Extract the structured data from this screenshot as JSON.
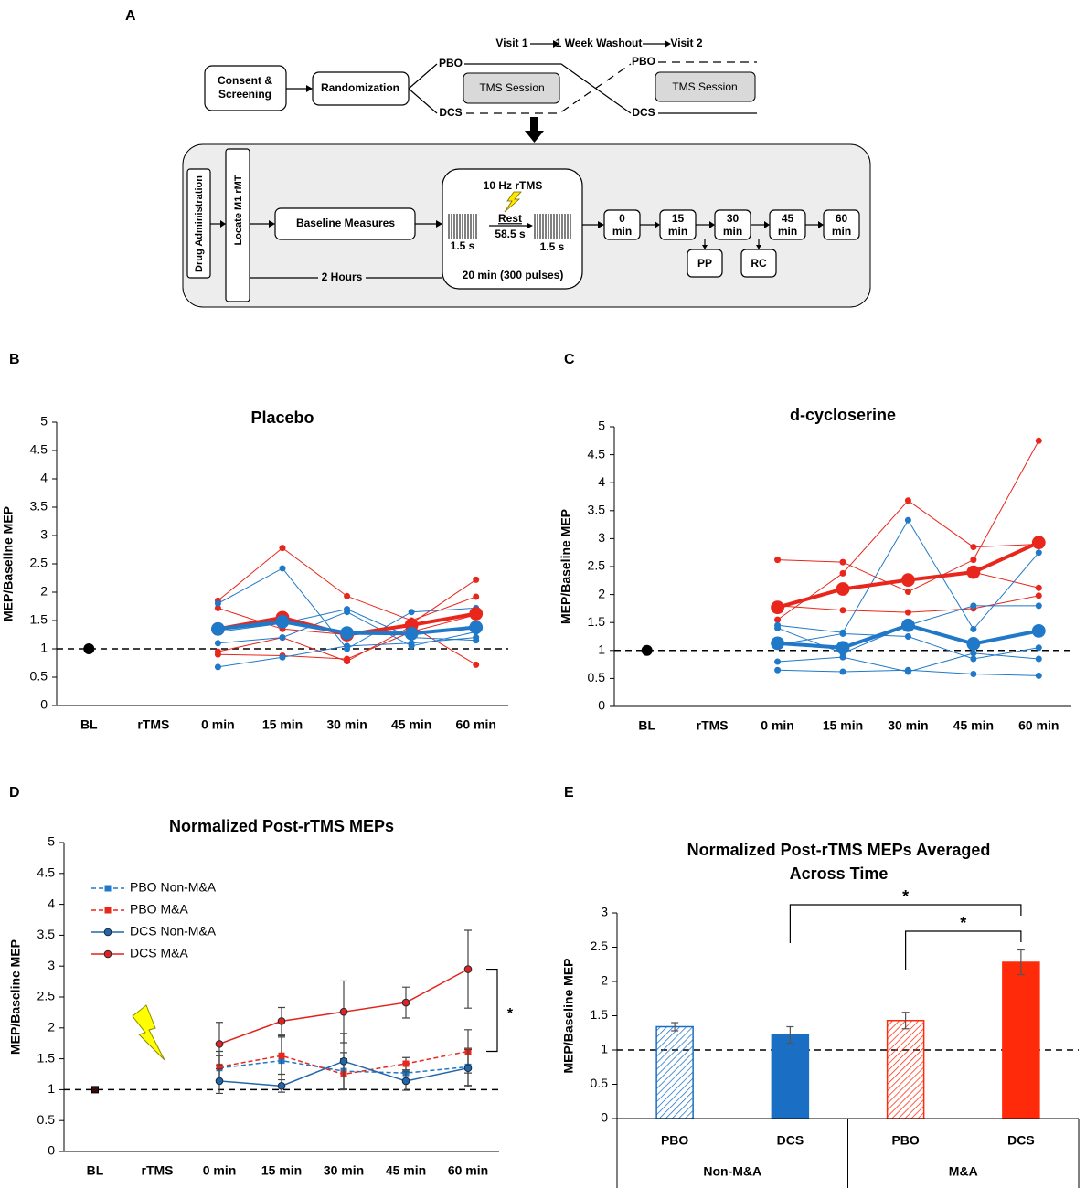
{
  "diagram": {
    "panel": "A",
    "visits": [
      "Visit 1",
      "1 Week Washout",
      "Visit 2"
    ],
    "consent": [
      "Consent &",
      "Screening"
    ],
    "randomization": "Randomization",
    "arms1": [
      "PBO",
      "DCS"
    ],
    "session1": "TMS Session",
    "arms2": [
      "PBO",
      "DCS"
    ],
    "session2": "TMS Session",
    "drug": "Drug Administration",
    "locate": "Locate M1 rMT",
    "baseline": "Baseline Measures",
    "interval": "2 Hours",
    "rtms": {
      "title": "10 Hz rTMS",
      "train": "1.5 s",
      "rest": "Rest",
      "rest_time": "58.5 s",
      "train2": "1.5 s",
      "total": "20 min (300 pulses)"
    },
    "timepoints": [
      [
        "0",
        "min"
      ],
      [
        "15",
        "min"
      ],
      [
        "30",
        "min"
      ],
      [
        "45",
        "min"
      ],
      [
        "60",
        "min"
      ]
    ],
    "probes": [
      "PP",
      "RC"
    ]
  },
  "chart_data": [
    {
      "type": "line",
      "panel": "B",
      "title": "Placebo",
      "y_label": "MEP/Baseline MEP",
      "categories": [
        "BL",
        "rTMS",
        "0 min",
        "15 min",
        "30 min",
        "45 min",
        "60 min"
      ],
      "ylim": [
        0,
        5
      ],
      "yticks": [
        0,
        0.5,
        1,
        1.5,
        2,
        2.5,
        3,
        3.5,
        4,
        4.5,
        5
      ],
      "refline": 1,
      "baseline": 1,
      "baseline_marker": "circle",
      "series": [
        {
          "color": "#e8261c",
          "linewidth": 1,
          "values": [
            null,
            null,
            1.85,
            2.78,
            1.93,
            1.5,
            1.92
          ]
        },
        {
          "color": "#e8261c",
          "linewidth": 1,
          "values": [
            null,
            null,
            1.72,
            1.35,
            1.25,
            1.45,
            2.22
          ]
        },
        {
          "color": "#e8261c",
          "linewidth": 1,
          "values": [
            null,
            null,
            0.95,
            1.2,
            0.78,
            1.4,
            0.72
          ]
        },
        {
          "color": "#e8261c",
          "linewidth": 1,
          "values": [
            null,
            null,
            0.9,
            0.88,
            0.82,
            1.3,
            1.6
          ]
        },
        {
          "color": "#1f78c8",
          "linewidth": 1,
          "values": [
            null,
            null,
            1.8,
            2.42,
            1.0,
            1.65,
            1.72
          ]
        },
        {
          "color": "#1f78c8",
          "linewidth": 1,
          "values": [
            null,
            null,
            1.3,
            1.45,
            1.7,
            1.2,
            1.15
          ]
        },
        {
          "color": "#1f78c8",
          "linewidth": 1,
          "values": [
            null,
            null,
            1.1,
            1.2,
            1.65,
            1.05,
            1.3
          ]
        },
        {
          "color": "#1f78c8",
          "linewidth": 1,
          "values": [
            null,
            null,
            0.68,
            0.85,
            1.05,
            1.1,
            1.2
          ]
        },
        {
          "color": "#e8261c",
          "linewidth": 4,
          "values": [
            null,
            null,
            1.35,
            1.55,
            1.25,
            1.42,
            1.62
          ]
        },
        {
          "color": "#1f78c8",
          "linewidth": 4,
          "values": [
            null,
            null,
            1.35,
            1.48,
            1.28,
            1.27,
            1.38
          ]
        }
      ]
    },
    {
      "type": "line",
      "panel": "C",
      "title": "d-cycloserine",
      "y_label": "MEP/Baseline MEP",
      "categories": [
        "BL",
        "rTMS",
        "0 min",
        "15 min",
        "30 min",
        "45 min",
        "60 min"
      ],
      "ylim": [
        0,
        5
      ],
      "yticks": [
        0,
        0.5,
        1,
        1.5,
        2,
        2.5,
        3,
        3.5,
        4,
        4.5,
        5
      ],
      "refline": 1,
      "baseline": 1,
      "baseline_marker": "circle",
      "series": [
        {
          "color": "#e8261c",
          "linewidth": 1,
          "values": [
            null,
            null,
            2.62,
            2.58,
            2.05,
            2.62,
            4.75
          ]
        },
        {
          "color": "#e8261c",
          "linewidth": 1,
          "values": [
            null,
            null,
            1.55,
            2.38,
            3.68,
            2.85,
            2.9
          ]
        },
        {
          "color": "#e8261c",
          "linewidth": 1,
          "values": [
            null,
            null,
            1.8,
            1.72,
            1.68,
            1.75,
            1.98
          ]
        },
        {
          "color": "#e8261c",
          "linewidth": 1,
          "values": [
            null,
            null,
            1.75,
            2.1,
            2.25,
            2.4,
            2.12
          ]
        },
        {
          "color": "#1f78c8",
          "linewidth": 1,
          "values": [
            null,
            null,
            1.45,
            1.32,
            3.33,
            1.38,
            2.75
          ]
        },
        {
          "color": "#1f78c8",
          "linewidth": 1,
          "values": [
            null,
            null,
            1.4,
            0.95,
            1.45,
            1.8,
            1.8
          ]
        },
        {
          "color": "#1f78c8",
          "linewidth": 1,
          "values": [
            null,
            null,
            1.1,
            1.3,
            1.25,
            0.85,
            1.05
          ]
        },
        {
          "color": "#1f78c8",
          "linewidth": 1,
          "values": [
            null,
            null,
            0.8,
            0.88,
            0.62,
            0.95,
            0.85
          ]
        },
        {
          "color": "#1f78c8",
          "linewidth": 1,
          "values": [
            null,
            null,
            0.65,
            0.62,
            0.65,
            0.58,
            0.55
          ]
        },
        {
          "color": "#e8261c",
          "linewidth": 4,
          "values": [
            null,
            null,
            1.77,
            2.1,
            2.26,
            2.4,
            2.93
          ]
        },
        {
          "color": "#1f78c8",
          "linewidth": 4,
          "values": [
            null,
            null,
            1.13,
            1.05,
            1.45,
            1.12,
            1.35
          ]
        }
      ]
    },
    {
      "type": "line",
      "panel": "D",
      "title": "Normalized Post-rTMS MEPs",
      "y_label": "MEP/Baseline MEP",
      "categories": [
        "BL",
        "rTMS",
        "0 min",
        "15 min",
        "30 min",
        "45 min",
        "60 min"
      ],
      "ylim": [
        0,
        5
      ],
      "yticks": [
        0,
        0.5,
        1,
        1.5,
        2,
        2.5,
        3,
        3.5,
        4,
        4.5,
        5
      ],
      "refline": 1,
      "baseline": 1,
      "baseline_marker": "square",
      "legend": "upper left",
      "annotations": [
        {
          "text": "*",
          "between": [
            3,
            1
          ]
        }
      ],
      "series": [
        {
          "name": "PBO Non-M&A",
          "color": "#1f78c8",
          "linewidth": 1.5,
          "dash": true,
          "marker": "square",
          "values": [
            null,
            null,
            1.35,
            1.47,
            1.3,
            1.27,
            1.37
          ],
          "errors": [
            null,
            null,
            0.2,
            0.4,
            0.3,
            0.15,
            0.3
          ]
        },
        {
          "name": "PBO M&A",
          "color": "#e8261c",
          "linewidth": 1.5,
          "dash": true,
          "marker": "square",
          "values": [
            null,
            null,
            1.37,
            1.55,
            1.25,
            1.42,
            1.62
          ],
          "errors": [
            null,
            null,
            0.25,
            0.3,
            0.25,
            0.1,
            0.35
          ]
        },
        {
          "name": "DCS Non-M&A",
          "color": "#2366a8",
          "linewidth": 1.5,
          "dash": false,
          "marker": "circle",
          "values": [
            null,
            null,
            1.14,
            1.06,
            1.46,
            1.14,
            1.35
          ],
          "errors": [
            null,
            null,
            0.2,
            0.1,
            0.45,
            0.15,
            0.3
          ]
        },
        {
          "name": "DCS M&A",
          "color": "#e3231b",
          "linewidth": 1.5,
          "dash": false,
          "marker": "circle",
          "values": [
            null,
            null,
            1.74,
            2.11,
            2.26,
            2.41,
            2.95
          ],
          "errors": [
            null,
            null,
            0.35,
            0.22,
            0.5,
            0.25,
            0.63
          ]
        }
      ]
    },
    {
      "type": "bar",
      "panel": "E",
      "title": [
        "Normalized Post-rTMS MEPs Averaged",
        "Across Time"
      ],
      "y_label": "MEP/Baseline MEP",
      "categories": [
        "PBO",
        "DCS",
        "PBO",
        "DCS"
      ],
      "groups": [
        "Non-M&A",
        "M&A"
      ],
      "values": [
        1.34,
        1.22,
        1.43,
        2.28
      ],
      "errors": [
        0.06,
        0.12,
        0.12,
        0.18
      ],
      "colors": [
        "#1a6fc4",
        "#1a6fc4",
        "#ff2a0a",
        "#ff2a0a"
      ],
      "hatch": [
        true,
        false,
        true,
        false
      ],
      "ylim": [
        0,
        3
      ],
      "yticks": [
        0,
        0.5,
        1,
        1.5,
        2,
        2.5,
        3
      ],
      "refline": 1,
      "annotations": [
        {
          "text": "*",
          "between": [
            1,
            3
          ]
        },
        {
          "text": "*",
          "between": [
            2,
            3
          ]
        }
      ]
    }
  ]
}
